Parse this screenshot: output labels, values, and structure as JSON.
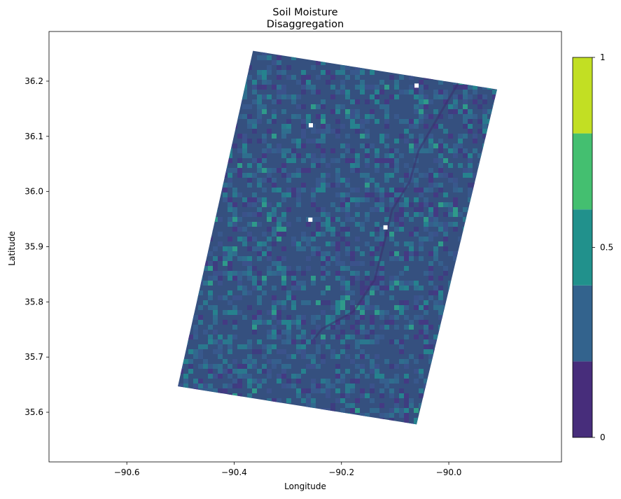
{
  "chart_data": {
    "type": "heatmap",
    "title_line1": "Soil Moisture",
    "title_line2": "Disaggregation",
    "xlabel": "Longitude",
    "ylabel": "Latitude",
    "xlim": [
      -90.745,
      -89.79
    ],
    "ylim": [
      35.51,
      36.29
    ],
    "x_ticks": [
      {
        "value": -90.6,
        "label": "−90.6"
      },
      {
        "value": -90.4,
        "label": "−90.4"
      },
      {
        "value": -90.2,
        "label": "−90.2"
      },
      {
        "value": -90.0,
        "label": "−90.0"
      }
    ],
    "y_ticks": [
      {
        "value": 35.6,
        "label": "35.6"
      },
      {
        "value": 35.7,
        "label": "35.7"
      },
      {
        "value": 35.8,
        "label": "35.8"
      },
      {
        "value": 35.9,
        "label": "35.9"
      },
      {
        "value": 36.0,
        "label": "36.0"
      },
      {
        "value": 36.1,
        "label": "36.1"
      },
      {
        "value": 36.2,
        "label": "36.2"
      }
    ],
    "data_extent_corners": [
      {
        "lon": -90.365,
        "lat": 36.255
      },
      {
        "lon": -89.91,
        "lat": 36.185
      },
      {
        "lon": -90.06,
        "lat": 35.578
      },
      {
        "lon": -90.505,
        "lat": 35.647
      }
    ],
    "colorbar": {
      "min": 0,
      "max": 1,
      "ticks": [
        {
          "value": 0,
          "label": "0"
        },
        {
          "value": 0.5,
          "label": "0.5"
        },
        {
          "value": 1,
          "label": "1"
        }
      ],
      "bins": [
        {
          "from": 0.0,
          "to": 0.2,
          "color": "#472d7b"
        },
        {
          "from": 0.2,
          "to": 0.4,
          "color": "#33638d"
        },
        {
          "from": 0.4,
          "to": 0.6,
          "color": "#21918c"
        },
        {
          "from": 0.6,
          "to": 0.8,
          "color": "#44bf70"
        },
        {
          "from": 0.8,
          "to": 1.0,
          "color": "#c2df23"
        }
      ]
    },
    "no_data_spots": [
      {
        "lon": -90.06,
        "lat": 36.192
      },
      {
        "lon": -90.257,
        "lat": 36.12
      },
      {
        "lon": -90.258,
        "lat": 35.949
      },
      {
        "lon": -90.118,
        "lat": 35.935
      }
    ]
  }
}
